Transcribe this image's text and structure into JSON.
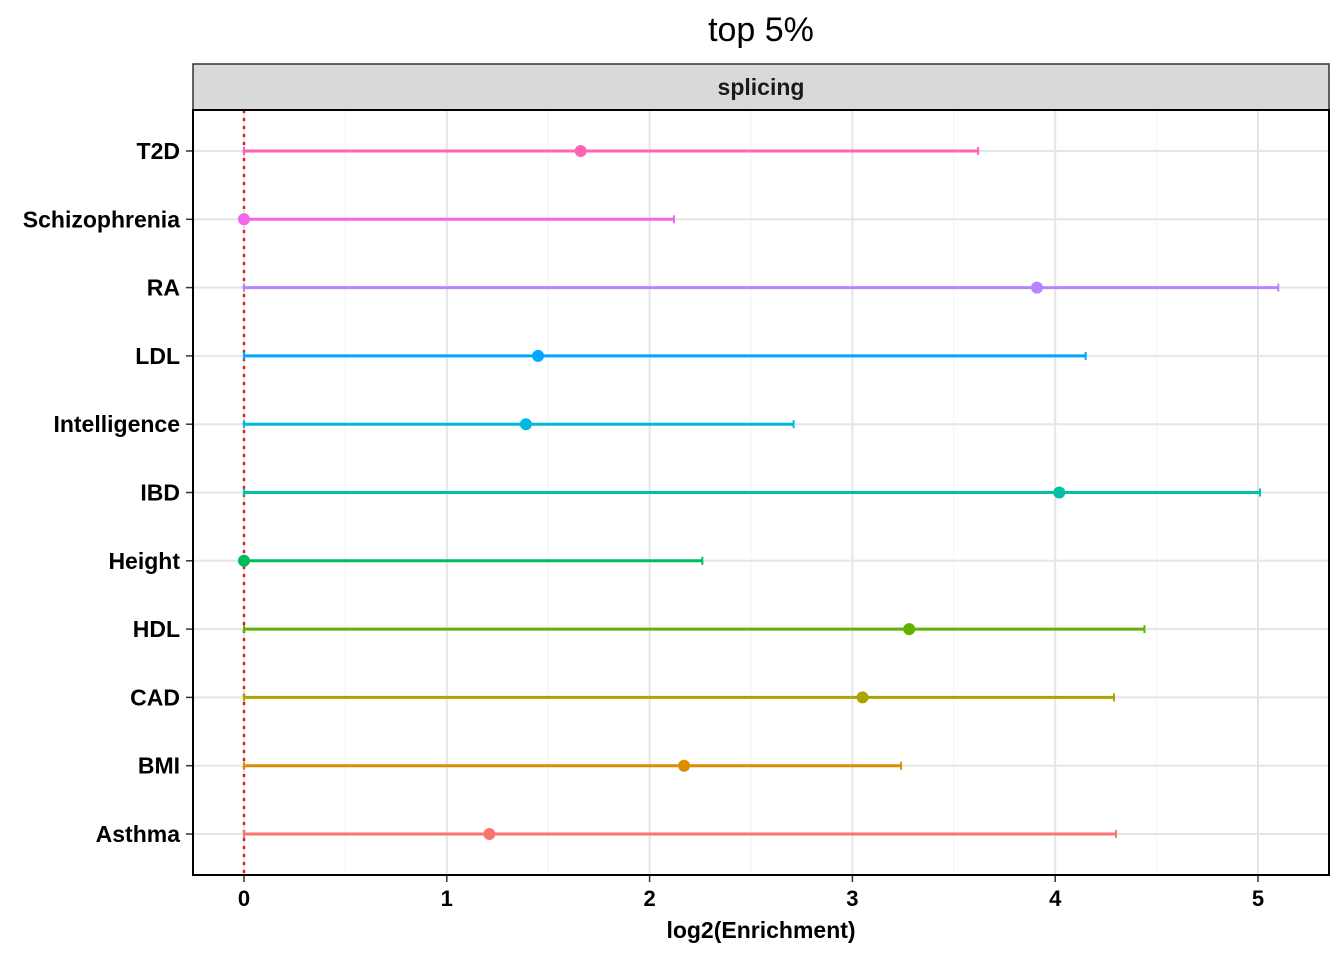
{
  "chart_data": {
    "type": "errorbar",
    "title": "top 5%",
    "facet": "splicing",
    "xlabel": "log2(Enrichment)",
    "ylabel": "",
    "xlim": [
      -0.25,
      5.35
    ],
    "xticks": [
      0,
      1,
      2,
      3,
      4,
      5
    ],
    "grid": true,
    "reference_line": {
      "x": 0,
      "style": "dotted",
      "color": "#e41a1c"
    },
    "categories": [
      "Asthma",
      "BMI",
      "CAD",
      "HDL",
      "Height",
      "IBD",
      "Intelligence",
      "LDL",
      "RA",
      "Schizophrenia",
      "T2D"
    ],
    "series": [
      {
        "category": "Asthma",
        "value": 1.21,
        "lower": 0,
        "upper": 4.3,
        "color": "#F8766D"
      },
      {
        "category": "BMI",
        "value": 2.17,
        "lower": 0,
        "upper": 3.24,
        "color": "#DB8E00"
      },
      {
        "category": "CAD",
        "value": 3.05,
        "lower": 0,
        "upper": 4.29,
        "color": "#AEA200"
      },
      {
        "category": "HDL",
        "value": 3.28,
        "lower": 0,
        "upper": 4.44,
        "color": "#64B200"
      },
      {
        "category": "Height",
        "value": 0.0,
        "lower": 0,
        "upper": 2.26,
        "color": "#00BD5C"
      },
      {
        "category": "IBD",
        "value": 4.02,
        "lower": 0,
        "upper": 5.01,
        "color": "#00C1A7"
      },
      {
        "category": "Intelligence",
        "value": 1.39,
        "lower": 0,
        "upper": 2.71,
        "color": "#00BADE"
      },
      {
        "category": "LDL",
        "value": 1.45,
        "lower": 0,
        "upper": 4.15,
        "color": "#00A6FF"
      },
      {
        "category": "RA",
        "value": 3.91,
        "lower": 0,
        "upper": 5.1,
        "color": "#B385FF"
      },
      {
        "category": "Schizophrenia",
        "value": 0.0,
        "lower": 0,
        "upper": 2.12,
        "color": "#EF67EB"
      },
      {
        "category": "T2D",
        "value": 1.66,
        "lower": 0,
        "upper": 3.62,
        "color": "#FF63B6"
      }
    ]
  }
}
